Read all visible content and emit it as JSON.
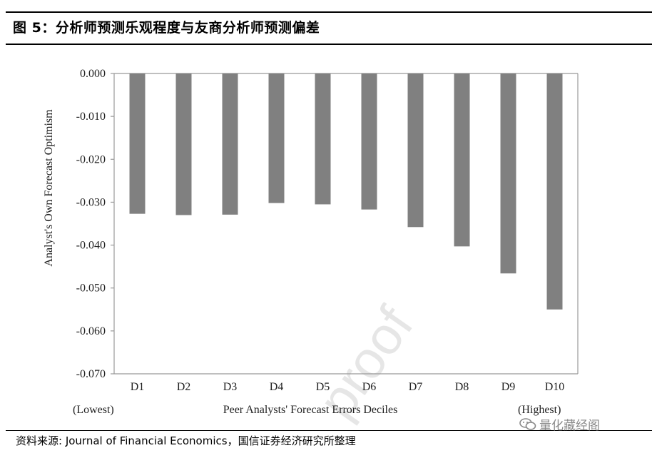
{
  "header": {
    "title": "图 5：分析师预测乐观程度与友商分析师预测偏差"
  },
  "footer": {
    "source": "资料来源: Journal of Financial Economics，国信证券经济研究所整理",
    "brand": "量化藏经阁"
  },
  "colors": {
    "bar": "#808080",
    "axis": "#999999",
    "text": "#222222"
  },
  "chart_data": {
    "type": "bar",
    "title": "",
    "categories": [
      "D1",
      "D2",
      "D3",
      "D4",
      "D5",
      "D6",
      "D7",
      "D8",
      "D9",
      "D10"
    ],
    "values": [
      -0.0327,
      -0.033,
      -0.0329,
      -0.0302,
      -0.0305,
      -0.0317,
      -0.0358,
      -0.0403,
      -0.0466,
      -0.055
    ],
    "xlabel": "Peer Analysts' Forecast Errors Deciles",
    "x_end_labels": {
      "left": "(Lowest)",
      "right": "(Highest)"
    },
    "ylabel": "Analyst's Own Forecast Optimism",
    "ylim": [
      -0.07,
      0.0
    ],
    "yticks": [
      "0.000",
      "-0.010",
      "-0.020",
      "-0.030",
      "-0.040",
      "-0.050",
      "-0.060",
      "-0.070"
    ],
    "watermark": "proof",
    "grid": false,
    "legend": "none"
  }
}
